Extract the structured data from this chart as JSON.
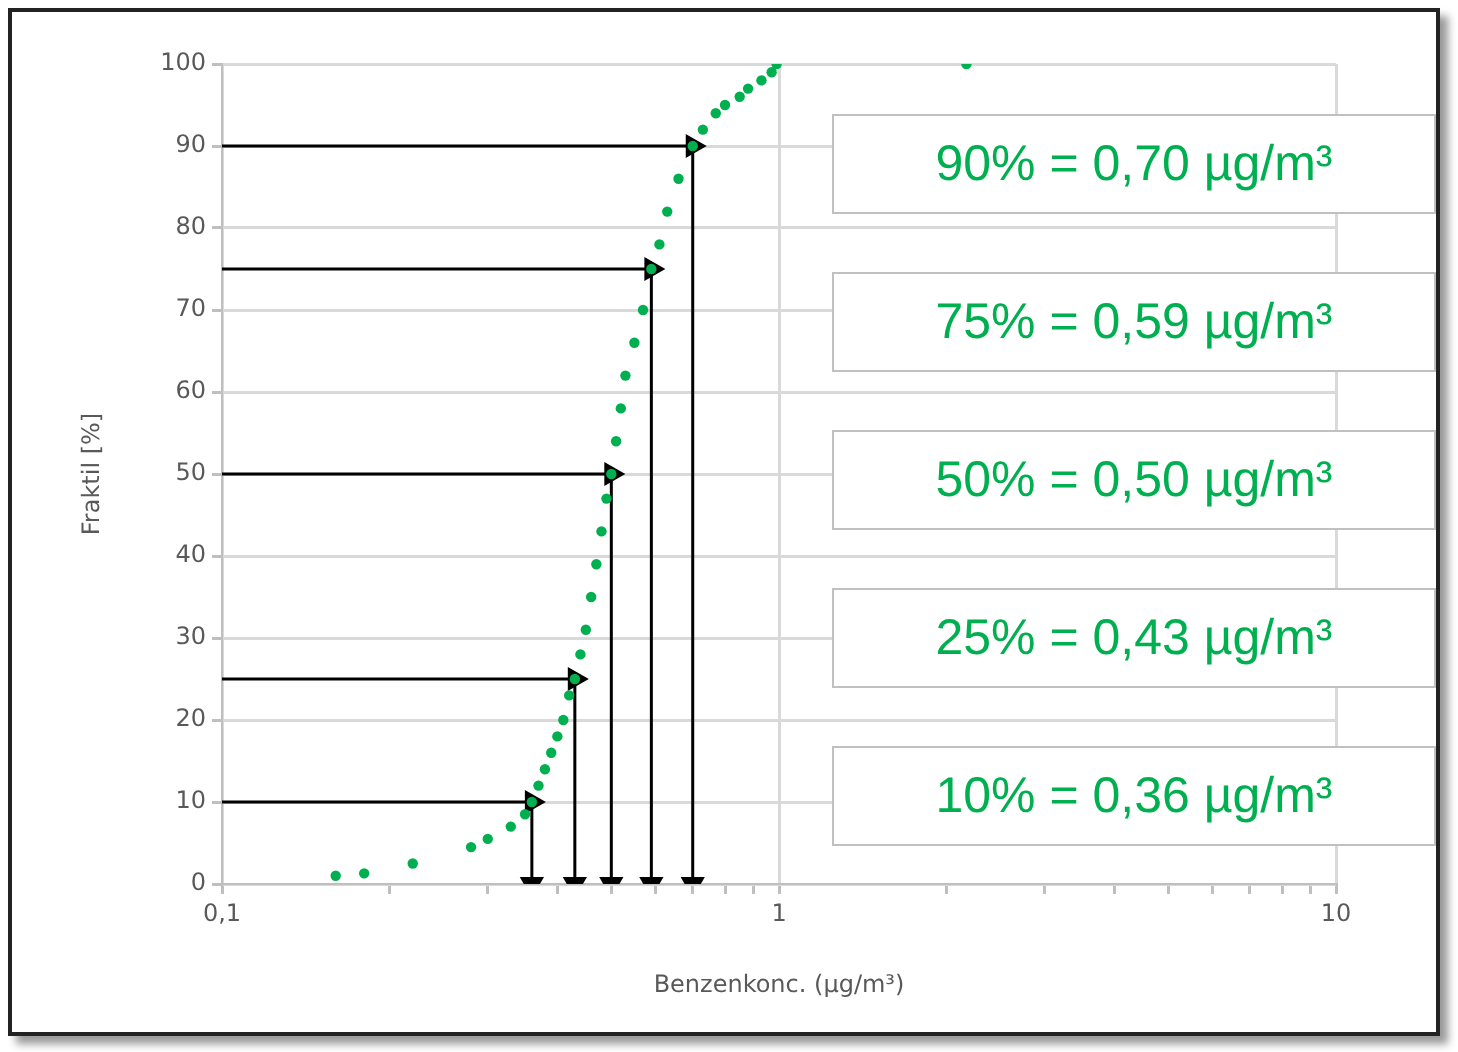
{
  "chart_data": {
    "type": "scatter",
    "xlabel": "Benzenkonc. (µg/m³)",
    "ylabel": "Fraktil [%]",
    "log": "x",
    "grid": true,
    "marker": "circle",
    "legend": false,
    "xlim": [
      0.1,
      10
    ],
    "xticks": [
      {
        "value": 0.1,
        "label": "0,1"
      },
      {
        "value": 0.2,
        "label": null
      },
      {
        "value": 0.3,
        "label": null
      },
      {
        "value": 0.4,
        "label": null
      },
      {
        "value": 0.5,
        "label": null
      },
      {
        "value": 0.6,
        "label": null
      },
      {
        "value": 0.7,
        "label": null
      },
      {
        "value": 0.8,
        "label": null
      },
      {
        "value": 0.9,
        "label": null
      },
      1,
      {
        "value": 2,
        "label": null
      },
      {
        "value": 3,
        "label": null
      },
      {
        "value": 4,
        "label": null
      },
      {
        "value": 5,
        "label": null
      },
      {
        "value": 6,
        "label": null
      },
      {
        "value": 7,
        "label": null
      },
      {
        "value": 8,
        "label": null
      },
      {
        "value": 9,
        "label": null
      },
      10
    ],
    "ylim": [
      0,
      100
    ],
    "yticks": [
      0,
      10,
      20,
      30,
      40,
      50,
      60,
      70,
      80,
      90,
      100
    ],
    "series": [
      {
        "type": "line",
        "color": "#000000",
        "marker": "triangle",
        "x": [
          0.1,
          0.7,
          0.7
        ],
        "values": [
          90,
          90,
          0
        ]
      },
      {
        "type": "line",
        "color": "#000000",
        "marker": "triangle",
        "x": [
          0.1,
          0.59,
          0.59
        ],
        "values": [
          75,
          75,
          0
        ]
      },
      {
        "type": "line",
        "color": "#000000",
        "marker": "triangle",
        "x": [
          0.1,
          0.5,
          0.5
        ],
        "values": [
          50,
          50,
          0
        ]
      },
      {
        "type": "line",
        "color": "#000000",
        "marker": "triangle",
        "x": [
          0.1,
          0.43,
          0.43
        ],
        "values": [
          25,
          25,
          0
        ]
      },
      {
        "type": "line",
        "color": "#000000",
        "marker": "triangle",
        "x": [
          0.1,
          0.36,
          0.36
        ],
        "values": [
          10,
          10,
          0
        ]
      },
      {
        "color": "#00b050",
        "x": [
          0.16,
          0.18,
          0.22,
          0.28,
          0.3,
          0.33,
          0.35,
          0.36,
          0.37,
          0.38,
          0.39,
          0.4,
          0.41,
          0.42,
          0.43,
          0.44,
          0.45,
          0.46,
          0.47,
          0.48,
          0.49,
          0.5,
          0.51,
          0.52,
          0.53,
          0.55,
          0.57,
          0.59,
          0.61,
          0.63,
          0.66,
          0.7,
          0.73,
          0.77,
          0.8,
          0.85,
          0.88,
          0.93,
          0.97,
          0.99,
          2.17
        ],
        "values": [
          1,
          1.3,
          2.5,
          4.5,
          5.5,
          7,
          8.5,
          10,
          12,
          14,
          16,
          18,
          20,
          23,
          25,
          28,
          31,
          35,
          39,
          43,
          47,
          50,
          54,
          58,
          62,
          66,
          70,
          75,
          78,
          82,
          86,
          90,
          92,
          94,
          95,
          96,
          97,
          98,
          99,
          100,
          100
        ]
      }
    ],
    "annotations": [
      "90% = 0,70 µg/m³",
      "75% = 0,59 µg/m³",
      "50% = 0,50 µg/m³",
      "25% = 0,43 µg/m³",
      "10% = 0,36 µg/m³"
    ]
  }
}
